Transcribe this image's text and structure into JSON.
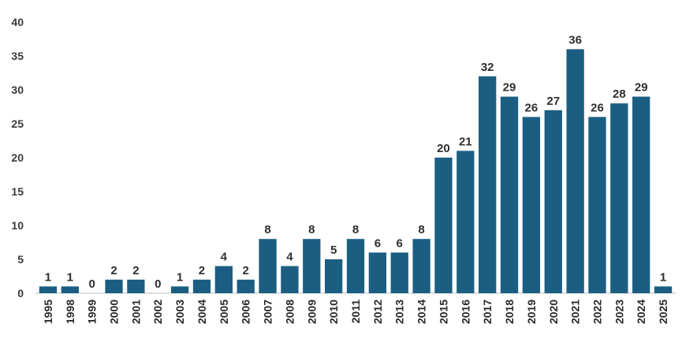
{
  "chart_data": {
    "type": "bar",
    "title": "",
    "xlabel": "",
    "ylabel": "",
    "categories": [
      "1995",
      "1998",
      "1999",
      "2000",
      "2001",
      "2002",
      "2003",
      "2004",
      "2005",
      "2006",
      "2007",
      "2008",
      "2009",
      "2010",
      "2011",
      "2012",
      "2013",
      "2014",
      "2015",
      "2016",
      "2017",
      "2018",
      "2019",
      "2020",
      "2021",
      "2022",
      "2023",
      "2024",
      "2025"
    ],
    "values": [
      1,
      1,
      0,
      2,
      2,
      0,
      1,
      2,
      4,
      2,
      8,
      4,
      8,
      5,
      8,
      6,
      6,
      8,
      20,
      21,
      32,
      29,
      26,
      27,
      36,
      26,
      28,
      29,
      1
    ],
    "ylim": [
      0,
      40
    ],
    "yticks": [
      0,
      5,
      10,
      15,
      20,
      25,
      30,
      35,
      40
    ],
    "grid": false,
    "legend": "none",
    "bar_color": "#1b5e82",
    "data_labels": true
  }
}
